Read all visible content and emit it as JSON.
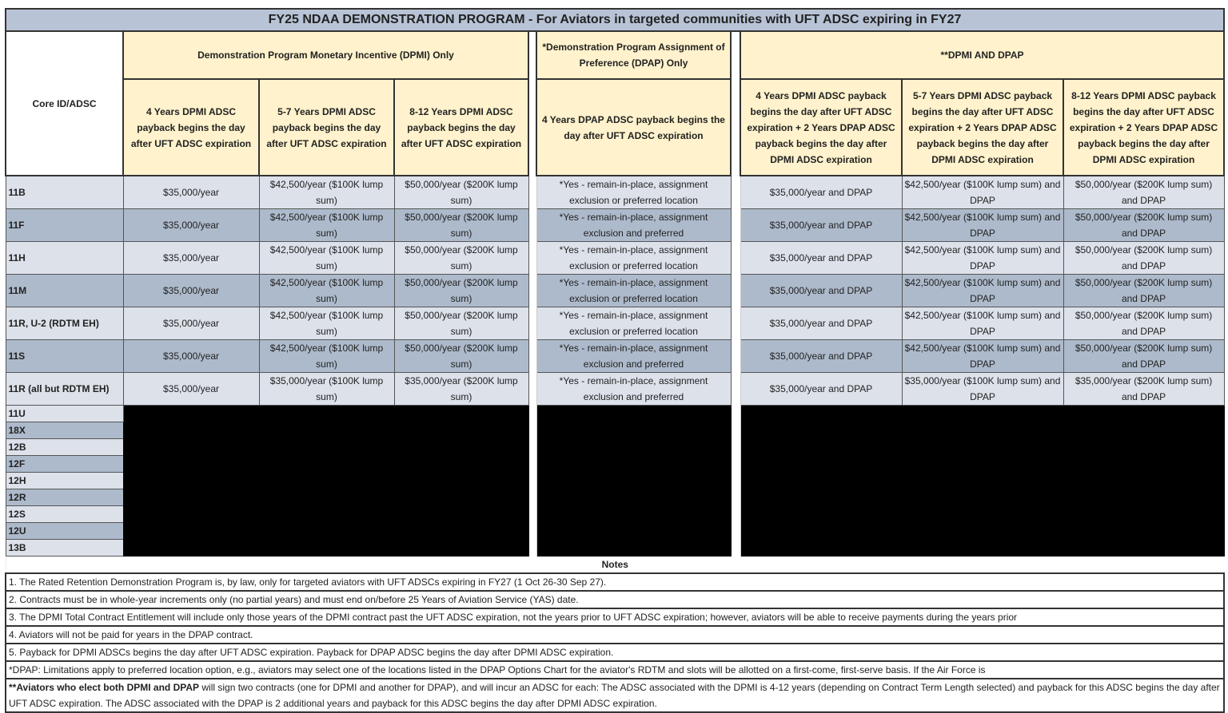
{
  "title": "FY25 NDAA DEMONSTRATION PROGRAM - For Aviators in targeted communities with UFT ADSC expiring in FY27",
  "headers": {
    "core": "Core ID/ADSC",
    "dpmi_group": "Demonstration Program Monetary Incentive (DPMI) Only",
    "dpap_group": "*Demonstration Program Assignment of Preference (DPAP) Only",
    "both_group": "**DPMI AND DPAP",
    "columns": [
      "4 Years DPMI ADSC payback begins the day after UFT ADSC expiration",
      "5-7 Years DPMI ADSC payback begins the day after UFT ADSC expiration",
      "8-12 Years DPMI ADSC payback begins the day after UFT ADSC expiration",
      "4 Years DPAP ADSC payback begins the day after UFT ADSC expiration",
      "4 Years DPMI ADSC payback begins the day after UFT ADSC expiration + 2 Years DPAP ADSC payback begins the day after DPMI ADSC expiration",
      "5-7 Years DPMI ADSC payback begins the day after UFT ADSC expiration + 2 Years DPAP ADSC payback begins the day after DPMI ADSC expiration",
      "8-12 Years DPMI ADSC payback begins the day after UFT ADSC expiration + 2 Years DPAP ADSC payback begins the day after DPMI ADSC expiration"
    ]
  },
  "rows": [
    {
      "id": "11B",
      "cells": [
        "$35,000/year",
        "$42,500/year ($100K lump sum)",
        "$50,000/year ($200K lump sum)",
        "*Yes - remain-in-place, assignment exclusion or preferred location",
        "$35,000/year and DPAP",
        "$42,500/year ($100K lump sum) and DPAP",
        "$50,000/year ($200K lump sum) and DPAP"
      ]
    },
    {
      "id": "11F",
      "cells": [
        "$35,000/year",
        "$42,500/year ($100K lump sum)",
        "$50,000/year ($200K lump sum)",
        "*Yes - remain-in-place, assignment exclusion and preferred",
        "$35,000/year and DPAP",
        "$42,500/year ($100K lump sum) and DPAP",
        "$50,000/year ($200K lump sum) and DPAP"
      ]
    },
    {
      "id": "11H",
      "cells": [
        "$35,000/year",
        "$42,500/year ($100K lump sum)",
        "$50,000/year ($200K lump sum)",
        "*Yes - remain-in-place, assignment exclusion or preferred location",
        "$35,000/year and DPAP",
        "$42,500/year ($100K lump sum) and DPAP",
        "$50,000/year ($200K lump sum) and DPAP"
      ]
    },
    {
      "id": "11M",
      "cells": [
        "$35,000/year",
        "$42,500/year ($100K lump sum)",
        "$50,000/year ($200K lump sum)",
        "*Yes - remain-in-place, assignment exclusion or preferred location",
        "$35,000/year and DPAP",
        "$42,500/year ($100K lump sum) and DPAP",
        "$50,000/year ($200K lump sum) and DPAP"
      ]
    },
    {
      "id": "11R, U-2 (RDTM EH)",
      "cells": [
        "$35,000/year",
        "$42,500/year ($100K lump sum)",
        "$50,000/year ($200K lump sum)",
        "*Yes - remain-in-place, assignment exclusion or preferred location",
        "$35,000/year and DPAP",
        "$42,500/year ($100K lump sum) and DPAP",
        "$50,000/year ($200K lump sum) and DPAP"
      ]
    },
    {
      "id": "11S",
      "cells": [
        "$35,000/year",
        "$42,500/year ($100K lump sum)",
        "$50,000/year ($200K lump sum)",
        "*Yes - remain-in-place, assignment exclusion and preferred",
        "$35,000/year and DPAP",
        "$42,500/year ($100K lump sum) and DPAP",
        "$50,000/year ($200K lump sum) and DPAP"
      ]
    },
    {
      "id": "11R (all but RDTM EH)",
      "cells": [
        "$35,000/year",
        "$35,000/year ($100K lump sum)",
        "$35,000/year ($200K lump sum)",
        "*Yes - remain-in-place, assignment exclusion and preferred",
        "$35,000/year and DPAP",
        "$35,000/year ($100K lump sum) and DPAP",
        "$35,000/year ($200K lump sum) and DPAP"
      ]
    }
  ],
  "redacted_rows": [
    "11U",
    "18X",
    "12B",
    "12F",
    "12H",
    "12R",
    "12S",
    "12U",
    "13B"
  ],
  "notes_label": "Notes",
  "notes": [
    "1. The Rated Retention Demonstration Program is, by law, only for targeted aviators with UFT ADSCs expiring in FY27 (1 Oct 26-30 Sep 27).",
    "2. Contracts must be in whole-year increments only (no partial years) and must end on/before 25 Years of Aviation Service (YAS) date.",
    "3. The DPMI Total Contract Entitlement will include only those years of the DPMI contract past the UFT ADSC expiration, not the years prior to UFT ADSC expiration; however, aviators will be able to receive payments during the years prior",
    "4. Aviators will not be paid for years in the DPAP contract.",
    "5. Payback for DPMI ADSCs begins the day after UFT ADSC expiration. Payback for DPAP ADSC begins the day after DPMI ADSC expiration.",
    "*DPAP:  Limitations apply to preferred location option, e.g., aviators may select one of the locations listed in the DPAP Options Chart for the aviator's RDTM and slots will be allotted on a first-come, first-serve basis. If the Air Force is"
  ],
  "note_both": {
    "lead": "**Aviators who elect both DPMI and DPAP",
    "rest": " will sign two contracts (one for DPMI and another for DPAP), and will incur an ADSC for each:  The ADSC associated with the DPMI is 4-12 years (depending on Contract Term Length selected) and payback for this ADSC begins the day after UFT ADSC expiration.  The ADSC associated with the DPAP is 2 additional years and payback for this ADSC begins the day after DPMI ADSC expiration."
  },
  "colors": {
    "header": "#fff2cc",
    "title": "#b8c4d6",
    "row_light": "#dce1ea",
    "row_dark": "#adbacb",
    "redacted": "#000000"
  }
}
